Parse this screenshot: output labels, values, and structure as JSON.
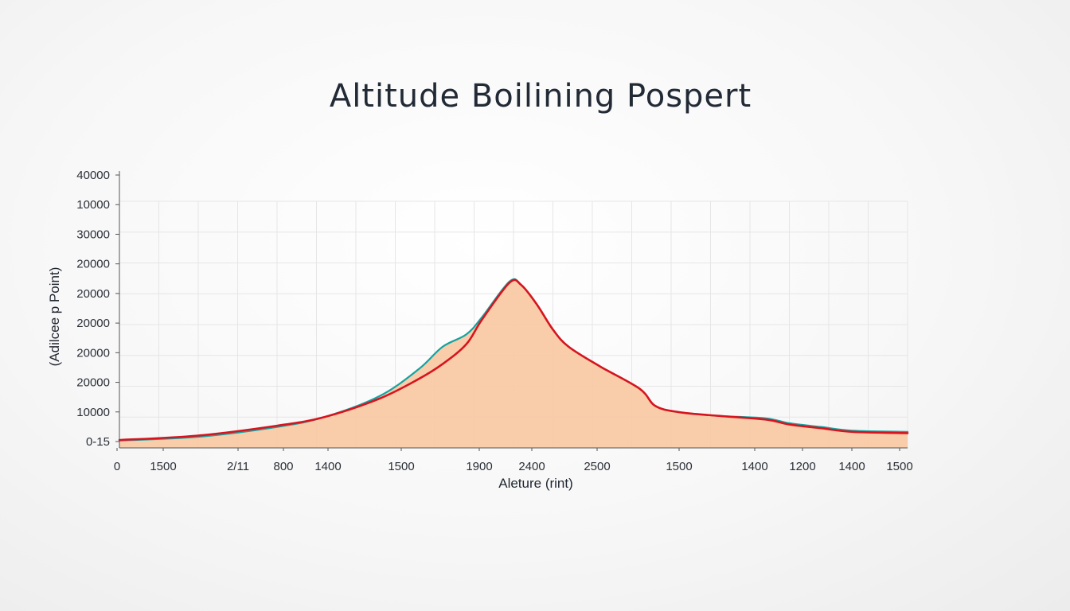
{
  "chart_data": {
    "type": "area",
    "title": "Altitude Boilining Pospert",
    "xlabel": "Aleture (rint)",
    "ylabel": "(Adilcee p Point)",
    "x_tick_labels": [
      "0",
      "1500",
      "2/11",
      "800",
      "1400",
      "1500",
      "1900",
      "2400",
      "2500",
      "1500",
      "1400",
      "1200",
      "1400",
      "1500"
    ],
    "y_tick_labels": [
      "40000",
      "10000",
      "30000",
      "20000",
      "20000",
      "20000",
      "20000",
      "20000",
      "10000",
      "0-15"
    ],
    "x_range": [
      0,
      100
    ],
    "y_range": [
      0,
      100
    ],
    "grid": true,
    "legend": "none",
    "series": [
      {
        "color": "#15a3a0",
        "x": [
          0,
          10,
          20,
          26,
          33,
          38,
          41,
          44,
          46,
          49.5,
          51,
          53,
          55,
          57,
          61,
          66,
          68,
          71,
          76,
          82,
          85,
          89,
          93,
          100
        ],
        "values": [
          3,
          4.5,
          8.5,
          12.5,
          21,
          32,
          41,
          46,
          53,
          67.5,
          66,
          58,
          48,
          41,
          33,
          24,
          17,
          14.5,
          13,
          12,
          10,
          8.5,
          7,
          6.5
        ]
      },
      {
        "color": "#d7141e",
        "x": [
          0,
          10,
          20,
          26,
          33,
          38,
          41,
          44,
          46,
          49.5,
          51,
          53,
          55,
          57,
          61,
          66,
          68,
          71,
          76,
          82,
          85,
          89,
          93,
          100
        ],
        "values": [
          3.2,
          5,
          9,
          12.5,
          20,
          28,
          34,
          42,
          52,
          67,
          66,
          58,
          48,
          41,
          33,
          24,
          17,
          14.5,
          13,
          11.5,
          9.5,
          8,
          6.5,
          6
        ]
      }
    ],
    "colors": {
      "area_fill": "#f9c9a3",
      "grid": "#e6e6e6",
      "axis": "#555555"
    }
  }
}
